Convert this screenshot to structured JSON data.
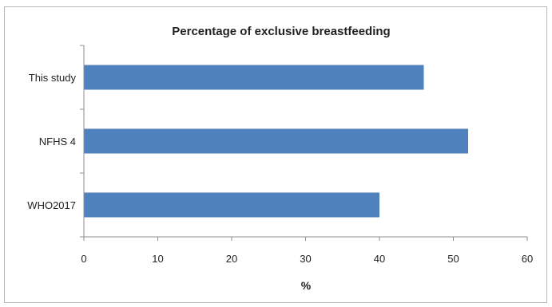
{
  "chart_data": {
    "type": "bar",
    "orientation": "horizontal",
    "title": "Percentage of exclusive breastfeeding",
    "categories": [
      "This study",
      "NFHS 4",
      "WHO2017"
    ],
    "values": [
      46,
      52,
      40
    ],
    "xlabel": "%",
    "ylabel": "",
    "xlim": [
      0,
      60
    ],
    "xticks": [
      "0",
      "10",
      "20",
      "30",
      "40",
      "50",
      "60"
    ],
    "grid": false,
    "legend": "none",
    "bar_color": "#4f81bd"
  }
}
